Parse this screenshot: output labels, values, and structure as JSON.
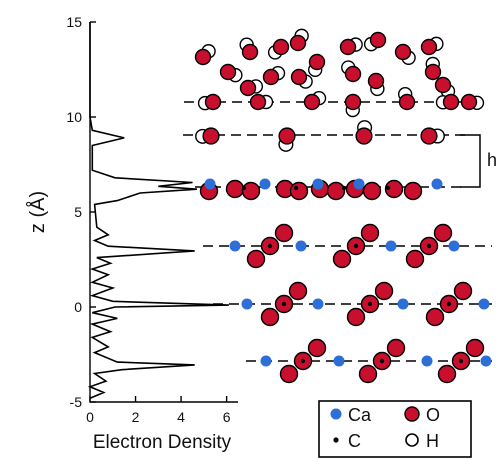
{
  "chart_data": {
    "type": "line",
    "xlabel": "Electron Density",
    "ylabel": "z (Å)",
    "x_ticks": [
      "0",
      "2",
      "4",
      "6"
    ],
    "y_ticks": [
      "15",
      "10",
      "5",
      "0",
      "-5"
    ],
    "xlim": [
      0,
      6.5
    ],
    "ylim": [
      -5,
      15
    ],
    "grid": false,
    "series": [
      {
        "values_xz": [
          [
            0,
            -4.8
          ],
          [
            0.6,
            -4.5
          ],
          [
            0,
            -4.2
          ],
          [
            0.7,
            -3.9
          ],
          [
            0.2,
            -3.5
          ],
          [
            1.4,
            -3.3
          ],
          [
            4.6,
            -3.05
          ],
          [
            1.2,
            -2.9
          ],
          [
            0.2,
            -2.4
          ],
          [
            0.8,
            -2.1
          ],
          [
            0.1,
            -1.6
          ],
          [
            0.9,
            -1.3
          ],
          [
            0.1,
            -0.9
          ],
          [
            1.2,
            -0.6
          ],
          [
            0.1,
            -0.3
          ],
          [
            1.1,
            0
          ],
          [
            6.1,
            0.1
          ],
          [
            1.0,
            0.3
          ],
          [
            0.1,
            0.6
          ],
          [
            1.0,
            1.0
          ],
          [
            0.1,
            1.3
          ],
          [
            0.8,
            1.7
          ],
          [
            0.1,
            2.0
          ],
          [
            0.9,
            2.3
          ],
          [
            0.3,
            2.6
          ],
          [
            4.6,
            2.95
          ],
          [
            0.8,
            3.2
          ],
          [
            0.2,
            3.5
          ],
          [
            0.8,
            3.8
          ],
          [
            0.3,
            4.2
          ],
          [
            0.2,
            5.4
          ],
          [
            1.2,
            5.6
          ],
          [
            2.2,
            6.0
          ],
          [
            4.7,
            6.2
          ],
          [
            3.0,
            6.35
          ],
          [
            4.5,
            6.55
          ],
          [
            1.1,
            6.8
          ],
          [
            0.1,
            7.2
          ],
          [
            0.1,
            8.5
          ],
          [
            1.5,
            8.9
          ],
          [
            0.1,
            9.3
          ],
          [
            0,
            10.0
          ],
          [
            0,
            15
          ]
        ]
      }
    ]
  },
  "structure": {
    "label": "h",
    "legend": [
      {
        "symbol": "blue-dot",
        "label": "Ca"
      },
      {
        "symbol": "red-circle",
        "label": "O"
      },
      {
        "symbol": "black-dot",
        "label": "C"
      },
      {
        "symbol": "open-circle",
        "label": "H"
      }
    ]
  },
  "colors": {
    "ca": "#2d6fd6",
    "o": "#c8102e",
    "h": "#ffffff",
    "c": "#000000",
    "line": "#000000"
  }
}
